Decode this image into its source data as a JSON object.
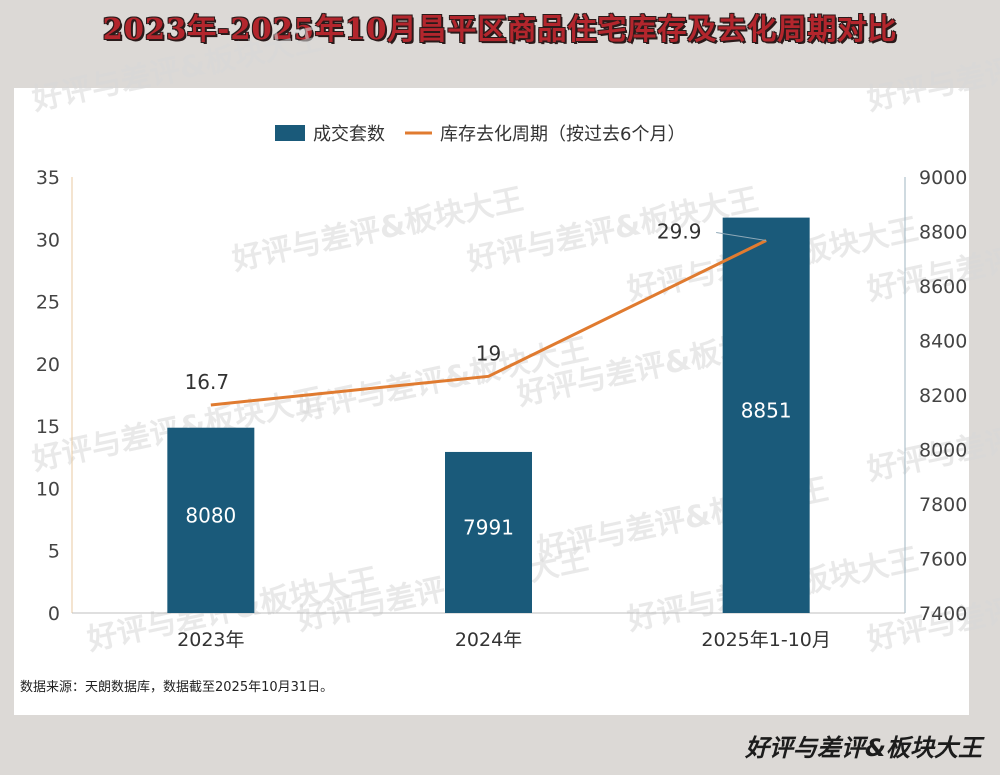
{
  "title": "2023年-2025年10月昌平区商品住宅库存及去化周期对比",
  "source": "数据来源：天朗数据库，数据截至2025年10月31日。",
  "brand": "好评与差评&板块大王",
  "watermark": "好评与差评&板块大王",
  "colors": {
    "bar": "#1a5a7a",
    "line": "#e07b30",
    "title": "#b3262d"
  },
  "chart_data": {
    "type": "bar",
    "categories": [
      "2023年",
      "2024年",
      "2025年1-10月"
    ],
    "series": [
      {
        "name": "成交套数",
        "type": "bar",
        "axis": "right",
        "values": [
          8080,
          7991,
          8851
        ]
      },
      {
        "name": "库存去化周期（按过去6个月）",
        "type": "line",
        "axis": "left",
        "values": [
          16.7,
          19,
          29.9
        ]
      }
    ],
    "y_left": {
      "min": 0,
      "max": 35,
      "ticks": [
        0,
        5,
        10,
        15,
        20,
        25,
        30,
        35
      ]
    },
    "y_right": {
      "min": 7400,
      "max": 9000,
      "ticks": [
        7400,
        7600,
        7800,
        8000,
        8200,
        8400,
        8600,
        8800,
        9000
      ]
    },
    "legend": "top-center",
    "grid": false
  }
}
